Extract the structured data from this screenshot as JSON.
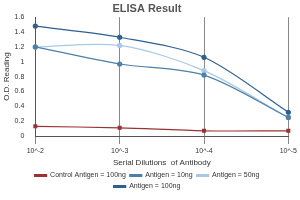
{
  "chart_data": {
    "type": "line",
    "title": "ELISA Result",
    "x_label": "Serial Dilutions  of Antibody",
    "y_label": "O.D. Reading",
    "categories": [
      "10^-2",
      "10^-3",
      "10^-4",
      "10^-5"
    ],
    "series": [
      {
        "name": "Control Antigen = 100ng",
        "color": "#993333",
        "marker": "square",
        "values": [
          0.13,
          0.11,
          0.07,
          0.07
        ]
      },
      {
        "name": "Antigen = 10ng",
        "color": "#4d7fa8",
        "marker": "circle",
        "values": [
          1.2,
          0.97,
          0.82,
          0.25
        ]
      },
      {
        "name": "Antigen = 50ng",
        "color": "#a8c8e8",
        "marker": "circle",
        "values": [
          1.2,
          1.22,
          0.88,
          0.25
        ]
      },
      {
        "name": "Antigen = 100ng",
        "color": "#2f5f8f",
        "marker": "circle",
        "values": [
          1.48,
          1.33,
          1.06,
          0.32
        ]
      }
    ],
    "ylim": [
      0,
      1.6
    ],
    "yticks": [
      0,
      0.2,
      0.4,
      0.6,
      0.8,
      1,
      1.2,
      1.4,
      1.6
    ],
    "grid": true,
    "legend": "bottom"
  }
}
